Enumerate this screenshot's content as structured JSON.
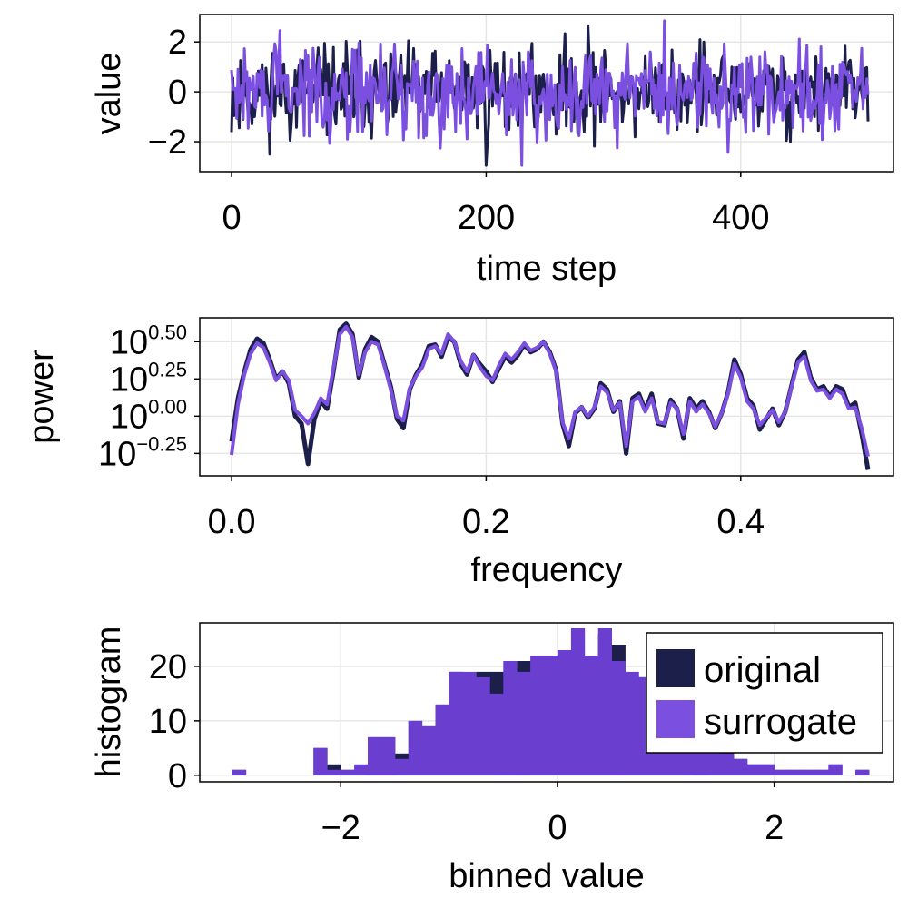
{
  "colors": {
    "original": "#1b1f4a",
    "surrogate": "#7b4fe0",
    "hist_fill": "#6a3fd0",
    "grid": "#e6e6e6",
    "frame": "#000000"
  },
  "chart_data": [
    {
      "type": "line",
      "id": "timeseries",
      "xlabel": "time step",
      "ylabel": "value",
      "xlim": [
        -25,
        520
      ],
      "ylim": [
        -3.2,
        3.1
      ],
      "xticks": [
        0,
        200,
        400
      ],
      "xtick_labels": [
        "0",
        "200",
        "400"
      ],
      "yticks": [
        -2,
        0,
        2
      ],
      "ytick_labels": [
        "−2",
        "0",
        "2"
      ],
      "n_points": 501,
      "series": [
        {
          "name": "original",
          "seed": 11,
          "amplitude": 0.9,
          "extremes": {
            "200": -2.95,
            "280": 2.65
          }
        },
        {
          "name": "surrogate",
          "seed": 29,
          "amplitude": 0.9,
          "extremes": {
            "228": -2.95,
            "38": 2.45,
            "340": 2.85
          }
        }
      ]
    },
    {
      "type": "line",
      "id": "spectrum",
      "yscale": "log10",
      "xlabel": "frequency",
      "ylabel": "power",
      "xlim": [
        -0.025,
        0.52
      ],
      "ylim": [
        -0.4,
        0.66
      ],
      "xticks": [
        0.0,
        0.2,
        0.4
      ],
      "xtick_labels": [
        "0.0",
        "0.2",
        "0.4"
      ],
      "yticks": [
        -0.25,
        0.0,
        0.25,
        0.5
      ],
      "ytick_bases": [
        "10",
        "10",
        "10",
        "10"
      ],
      "ytick_exponents": [
        "−0.25",
        "0.00",
        "0.25",
        "0.50"
      ],
      "x": [
        0.0,
        0.005,
        0.01,
        0.015,
        0.02,
        0.025,
        0.03,
        0.035,
        0.04,
        0.045,
        0.05,
        0.055,
        0.06,
        0.065,
        0.07,
        0.075,
        0.08,
        0.085,
        0.09,
        0.095,
        0.1,
        0.105,
        0.11,
        0.115,
        0.12,
        0.125,
        0.13,
        0.135,
        0.14,
        0.145,
        0.15,
        0.155,
        0.16,
        0.165,
        0.17,
        0.175,
        0.18,
        0.185,
        0.19,
        0.195,
        0.2,
        0.205,
        0.21,
        0.215,
        0.22,
        0.225,
        0.23,
        0.235,
        0.24,
        0.245,
        0.25,
        0.255,
        0.26,
        0.265,
        0.27,
        0.275,
        0.28,
        0.285,
        0.29,
        0.295,
        0.3,
        0.305,
        0.31,
        0.315,
        0.32,
        0.325,
        0.33,
        0.335,
        0.34,
        0.345,
        0.35,
        0.355,
        0.36,
        0.365,
        0.37,
        0.375,
        0.38,
        0.385,
        0.39,
        0.395,
        0.4,
        0.405,
        0.41,
        0.415,
        0.42,
        0.425,
        0.43,
        0.435,
        0.44,
        0.445,
        0.45,
        0.455,
        0.46,
        0.465,
        0.47,
        0.475,
        0.48,
        0.485,
        0.49,
        0.495,
        0.5
      ],
      "series": [
        {
          "name": "original",
          "values": [
            -0.17,
            0.12,
            0.3,
            0.45,
            0.52,
            0.49,
            0.38,
            0.25,
            0.3,
            0.22,
            0.0,
            -0.05,
            -0.32,
            -0.02,
            0.1,
            0.05,
            0.3,
            0.58,
            0.62,
            0.55,
            0.26,
            0.45,
            0.53,
            0.5,
            0.35,
            0.2,
            -0.02,
            -0.08,
            0.18,
            0.28,
            0.35,
            0.47,
            0.48,
            0.4,
            0.53,
            0.5,
            0.35,
            0.28,
            0.41,
            0.35,
            0.3,
            0.23,
            0.32,
            0.4,
            0.36,
            0.41,
            0.48,
            0.43,
            0.45,
            0.5,
            0.43,
            0.31,
            -0.05,
            -0.2,
            0.02,
            0.06,
            -0.01,
            0.05,
            0.22,
            0.18,
            0.03,
            0.1,
            -0.25,
            0.12,
            0.15,
            0.04,
            0.15,
            -0.05,
            -0.06,
            0.11,
            0.05,
            -0.15,
            0.12,
            0.05,
            0.1,
            0.03,
            -0.08,
            0.02,
            0.16,
            0.38,
            0.28,
            0.12,
            0.07,
            -0.09,
            -0.02,
            0.05,
            -0.06,
            0.03,
            0.21,
            0.38,
            0.43,
            0.26,
            0.18,
            0.2,
            0.13,
            0.2,
            0.18,
            0.06,
            0.09,
            -0.12,
            -0.36
          ]
        },
        {
          "name": "surrogate",
          "values": [
            -0.26,
            0.08,
            0.28,
            0.42,
            0.49,
            0.46,
            0.36,
            0.24,
            0.3,
            0.24,
            0.04,
            0.0,
            -0.05,
            0.02,
            0.12,
            0.08,
            0.32,
            0.55,
            0.6,
            0.53,
            0.28,
            0.43,
            0.5,
            0.48,
            0.34,
            0.18,
            0.0,
            -0.03,
            0.19,
            0.27,
            0.33,
            0.45,
            0.47,
            0.42,
            0.55,
            0.5,
            0.37,
            0.3,
            0.41,
            0.33,
            0.27,
            0.24,
            0.34,
            0.42,
            0.38,
            0.43,
            0.49,
            0.44,
            0.46,
            0.5,
            0.42,
            0.3,
            -0.04,
            -0.15,
            0.03,
            0.06,
            0.0,
            0.06,
            0.2,
            0.16,
            0.04,
            0.09,
            -0.2,
            0.1,
            0.13,
            0.03,
            0.12,
            -0.04,
            -0.05,
            0.09,
            0.05,
            -0.12,
            0.1,
            0.03,
            0.08,
            0.02,
            -0.07,
            0.02,
            0.15,
            0.35,
            0.26,
            0.1,
            0.05,
            -0.06,
            -0.01,
            0.04,
            -0.04,
            0.03,
            0.2,
            0.36,
            0.4,
            0.24,
            0.17,
            0.18,
            0.12,
            0.18,
            0.15,
            0.05,
            0.06,
            -0.08,
            -0.27
          ]
        }
      ]
    },
    {
      "type": "bar",
      "id": "histogram",
      "xlabel": "binned value",
      "ylabel": "histogram",
      "xlim": [
        -3.3,
        3.1
      ],
      "ylim": [
        -1.2,
        28
      ],
      "xticks": [
        -2,
        0,
        2
      ],
      "xtick_labels": [
        "−2",
        "0",
        "2"
      ],
      "yticks": [
        0,
        10,
        20
      ],
      "ytick_labels": [
        "0",
        "10",
        "20"
      ],
      "bin_width": 0.125,
      "bin_starts": [
        -3.0,
        -2.875,
        -2.75,
        -2.625,
        -2.5,
        -2.375,
        -2.25,
        -2.125,
        -2.0,
        -1.875,
        -1.75,
        -1.625,
        -1.5,
        -1.375,
        -1.25,
        -1.125,
        -1.0,
        -0.875,
        -0.75,
        -0.625,
        -0.5,
        -0.375,
        -0.25,
        -0.125,
        0.0,
        0.125,
        0.25,
        0.375,
        0.5,
        0.625,
        0.75,
        0.875,
        1.0,
        1.125,
        1.25,
        1.375,
        1.5,
        1.625,
        1.75,
        1.875,
        2.0,
        2.125,
        2.25,
        2.375,
        2.5,
        2.625,
        2.75
      ],
      "series": [
        {
          "name": "original",
          "values": [
            1,
            0,
            0,
            0,
            0,
            0,
            5,
            2,
            1,
            1,
            7,
            7,
            4,
            10,
            9,
            13,
            19,
            16,
            19,
            19,
            13,
            21,
            19,
            20,
            22,
            22,
            19,
            26,
            24,
            18,
            18,
            12,
            9,
            8,
            7,
            6,
            5,
            3,
            2,
            2,
            1,
            1,
            1,
            1,
            2,
            0,
            1
          ]
        },
        {
          "name": "surrogate",
          "values": [
            1,
            0,
            0,
            0,
            0,
            0,
            5,
            1,
            1,
            2,
            7,
            7,
            3,
            10,
            9,
            13,
            19,
            19,
            18,
            15,
            21,
            19,
            22,
            22,
            23,
            27,
            22,
            27,
            21,
            19,
            18,
            12,
            10,
            9,
            7,
            5,
            4,
            3,
            2,
            2,
            1,
            1,
            1,
            1,
            2,
            0,
            1
          ]
        }
      ],
      "legend": {
        "position": "top-right",
        "entries": [
          "original",
          "surrogate"
        ]
      }
    }
  ]
}
